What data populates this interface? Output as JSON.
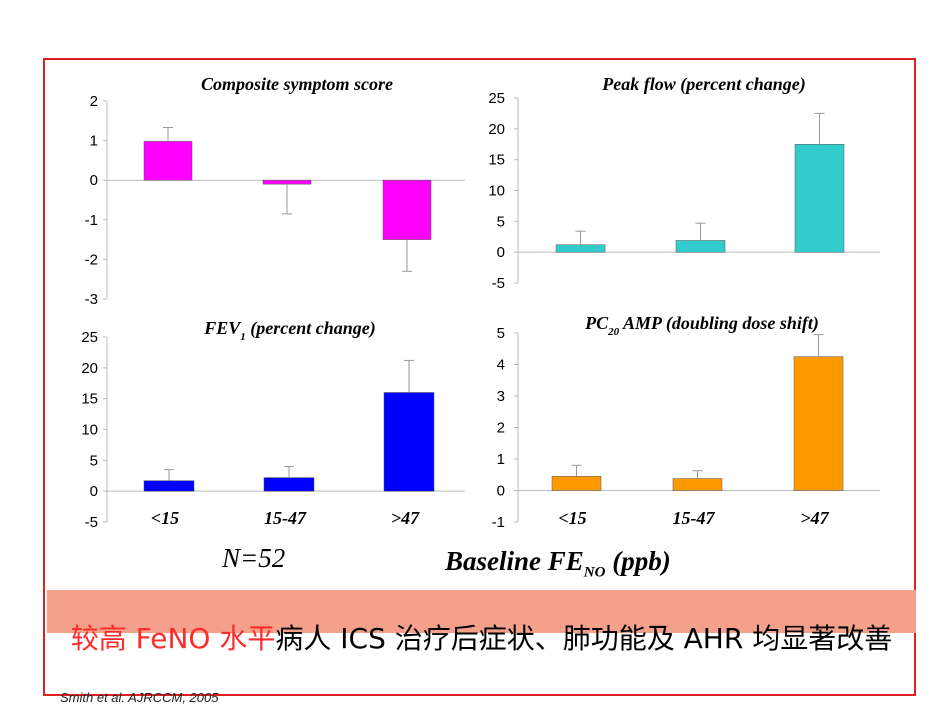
{
  "figure": {
    "sample_size": "N=52",
    "x_axis_title_main": "Baseline FE",
    "x_axis_title_sub": "NO",
    "x_axis_title_unit": " (ppb)",
    "conclusion_highlight": "较高 FeNO 水平",
    "conclusion_rest": "病人 ICS 治疗后症状、肺功能及 AHR 均显著改善",
    "citation": "Smith et al. AJRCCM, 2005"
  },
  "chart_data": [
    {
      "type": "bar",
      "id": "composite",
      "title": "Composite symptom score",
      "categories": [
        "<15",
        "15-47",
        ">47"
      ],
      "values": [
        0.98,
        -0.1,
        -1.5
      ],
      "errors": [
        0.35,
        0.75,
        0.8
      ],
      "ylim": [
        -3,
        2
      ],
      "yticks": [
        2,
        1,
        0,
        -1,
        -2,
        -3
      ],
      "color": "#ff00ff",
      "show_x_labels": false
    },
    {
      "type": "bar",
      "id": "peakflow",
      "title": "Peak flow (percent change)",
      "categories": [
        "<15",
        "15-47",
        ">47"
      ],
      "values": [
        1.2,
        1.9,
        17.5
      ],
      "errors": [
        2.2,
        2.8,
        5.0
      ],
      "ylim": [
        -5,
        25
      ],
      "yticks": [
        25,
        20,
        15,
        10,
        5,
        0,
        -5
      ],
      "color": "#33cccc",
      "show_x_labels": false
    },
    {
      "type": "bar",
      "id": "fev1",
      "title": "FEV",
      "title_sub": "1",
      "title_rest": " (percent change)",
      "categories": [
        "<15",
        "15-47",
        ">47"
      ],
      "values": [
        1.7,
        2.2,
        16.0
      ],
      "errors": [
        1.8,
        1.8,
        5.2
      ],
      "ylim": [
        -5,
        25
      ],
      "yticks": [
        25,
        20,
        15,
        10,
        5,
        0,
        -5
      ],
      "color": "#0000ff",
      "show_x_labels": true
    },
    {
      "type": "bar",
      "id": "pc20",
      "title": "PC",
      "title_sub": "20",
      "title_rest": " AMP (doubling dose shift)",
      "categories": [
        "<15",
        "15-47",
        ">47"
      ],
      "values": [
        0.45,
        0.38,
        4.25
      ],
      "errors": [
        0.35,
        0.25,
        0.7
      ],
      "ylim": [
        -1,
        5
      ],
      "yticks": [
        5,
        4,
        3,
        2,
        1,
        0,
        -1
      ],
      "color": "#ff9900",
      "show_x_labels": true
    }
  ]
}
